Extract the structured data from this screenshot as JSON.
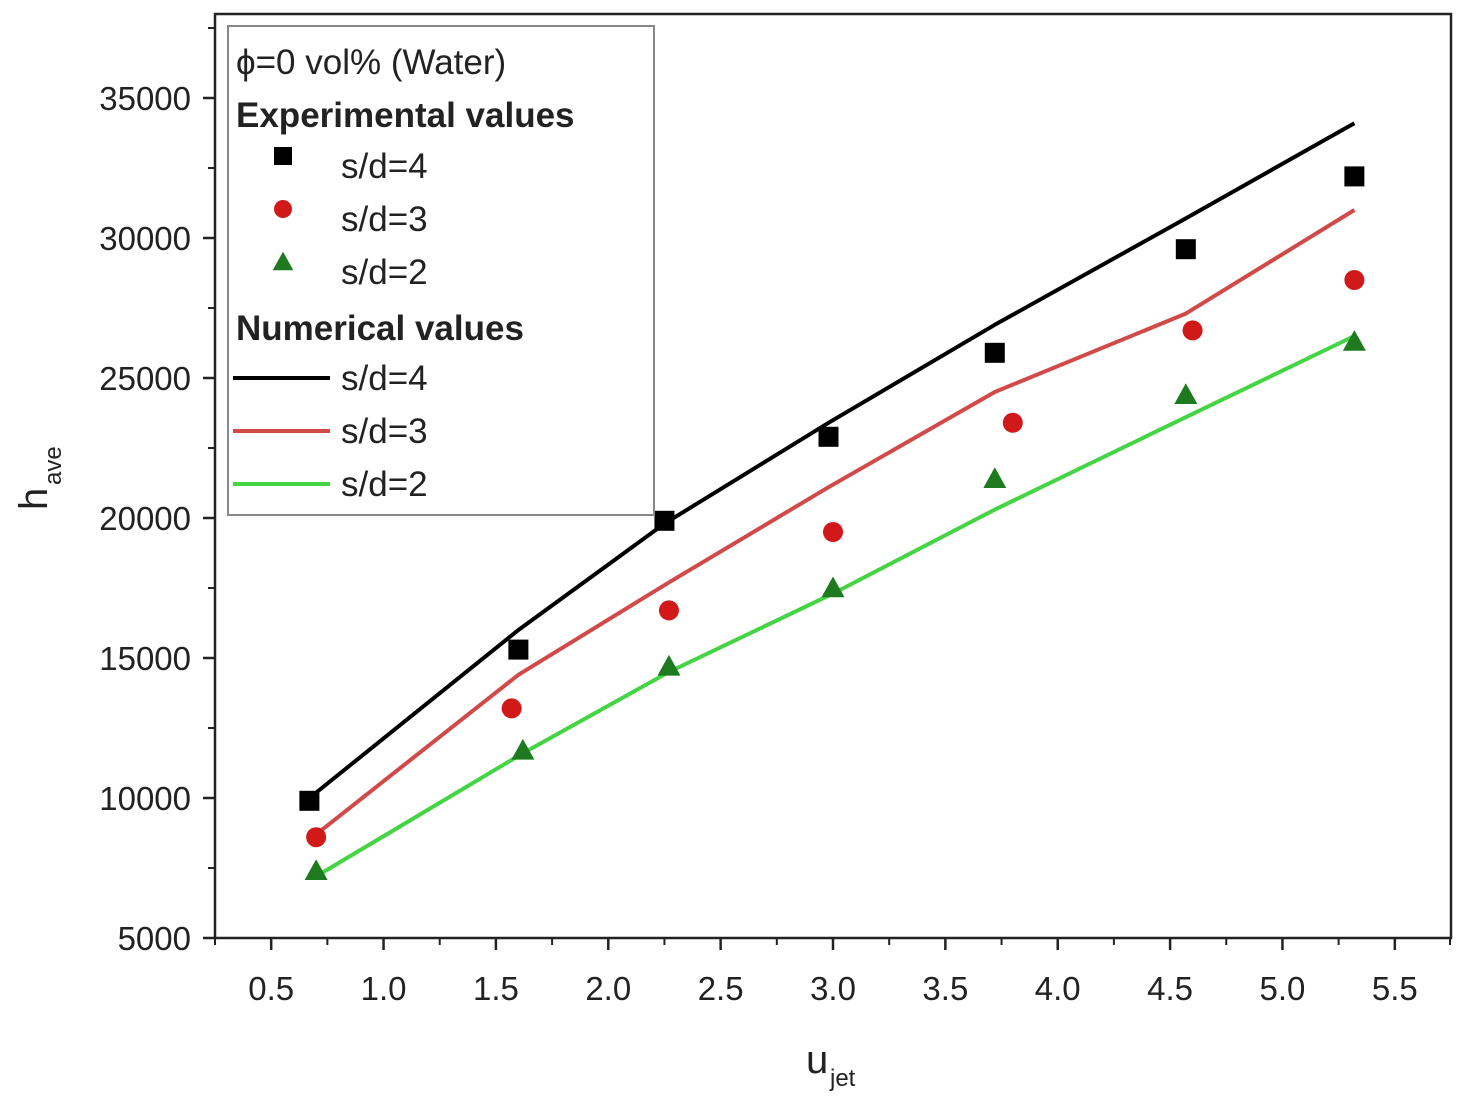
{
  "chart_data": {
    "type": "line",
    "title": "",
    "xlabel": {
      "main": "u",
      "sub": "jet"
    },
    "ylabel": {
      "main": "h",
      "sub": "ave"
    },
    "xlim": [
      0.25,
      5.75
    ],
    "ylim": [
      5000,
      38000
    ],
    "xticks": [
      0.5,
      1.0,
      1.5,
      2.0,
      2.5,
      3.0,
      3.5,
      4.0,
      4.5,
      5.0,
      5.5
    ],
    "xtick_labels": [
      "0.5",
      "1.0",
      "1.5",
      "2.0",
      "2.5",
      "3.0",
      "3.5",
      "4.0",
      "4.5",
      "5.0",
      "5.5"
    ],
    "yticks": [
      5000,
      10000,
      15000,
      20000,
      25000,
      30000,
      35000
    ],
    "ytick_labels": [
      "5000",
      "10000",
      "15000",
      "20000",
      "25000",
      "30000",
      "35000"
    ],
    "grid": false,
    "legend": {
      "placement": "top-left",
      "title": "ϕ=0 vol% (Water)",
      "experimental_heading": "Experimental values",
      "numerical_heading": "Numerical values"
    },
    "experimental": [
      {
        "name": "s/d=4",
        "marker": "square",
        "color": "#000000",
        "x": [
          0.67,
          1.6,
          2.25,
          2.98,
          3.72,
          4.57,
          5.32
        ],
        "y": [
          9900,
          15300,
          19900,
          22900,
          25900,
          29600,
          32200
        ]
      },
      {
        "name": "s/d=3",
        "marker": "circle",
        "color": "#d11919",
        "x": [
          0.7,
          1.57,
          2.27,
          3.0,
          3.8,
          4.6,
          5.32
        ],
        "y": [
          8600,
          13200,
          16700,
          19500,
          23400,
          26700,
          28500
        ]
      },
      {
        "name": "s/d=2",
        "marker": "triangle",
        "color": "#1e7a1e",
        "x": [
          0.7,
          1.62,
          2.27,
          3.0,
          3.72,
          4.57,
          5.32
        ],
        "y": [
          7400,
          11700,
          14700,
          17500,
          21400,
          24400,
          26300
        ]
      }
    ],
    "numerical": [
      {
        "name": "s/d=4",
        "color": "#000000",
        "x": [
          0.67,
          1.6,
          2.25,
          2.98,
          3.72,
          4.57,
          5.32
        ],
        "y": [
          10000,
          16000,
          19800,
          23400,
          26900,
          30700,
          34100
        ]
      },
      {
        "name": "s/d=3",
        "color": "#d14a4a",
        "x": [
          0.7,
          1.6,
          2.27,
          2.98,
          3.72,
          4.57,
          5.32
        ],
        "y": [
          8700,
          14400,
          17700,
          21100,
          24500,
          27300,
          31000
        ]
      },
      {
        "name": "s/d=2",
        "color": "#44d444",
        "x": [
          0.7,
          1.62,
          2.27,
          3.0,
          3.72,
          4.57,
          5.32
        ],
        "y": [
          7200,
          11600,
          14500,
          17300,
          20300,
          23600,
          26500
        ]
      }
    ]
  }
}
